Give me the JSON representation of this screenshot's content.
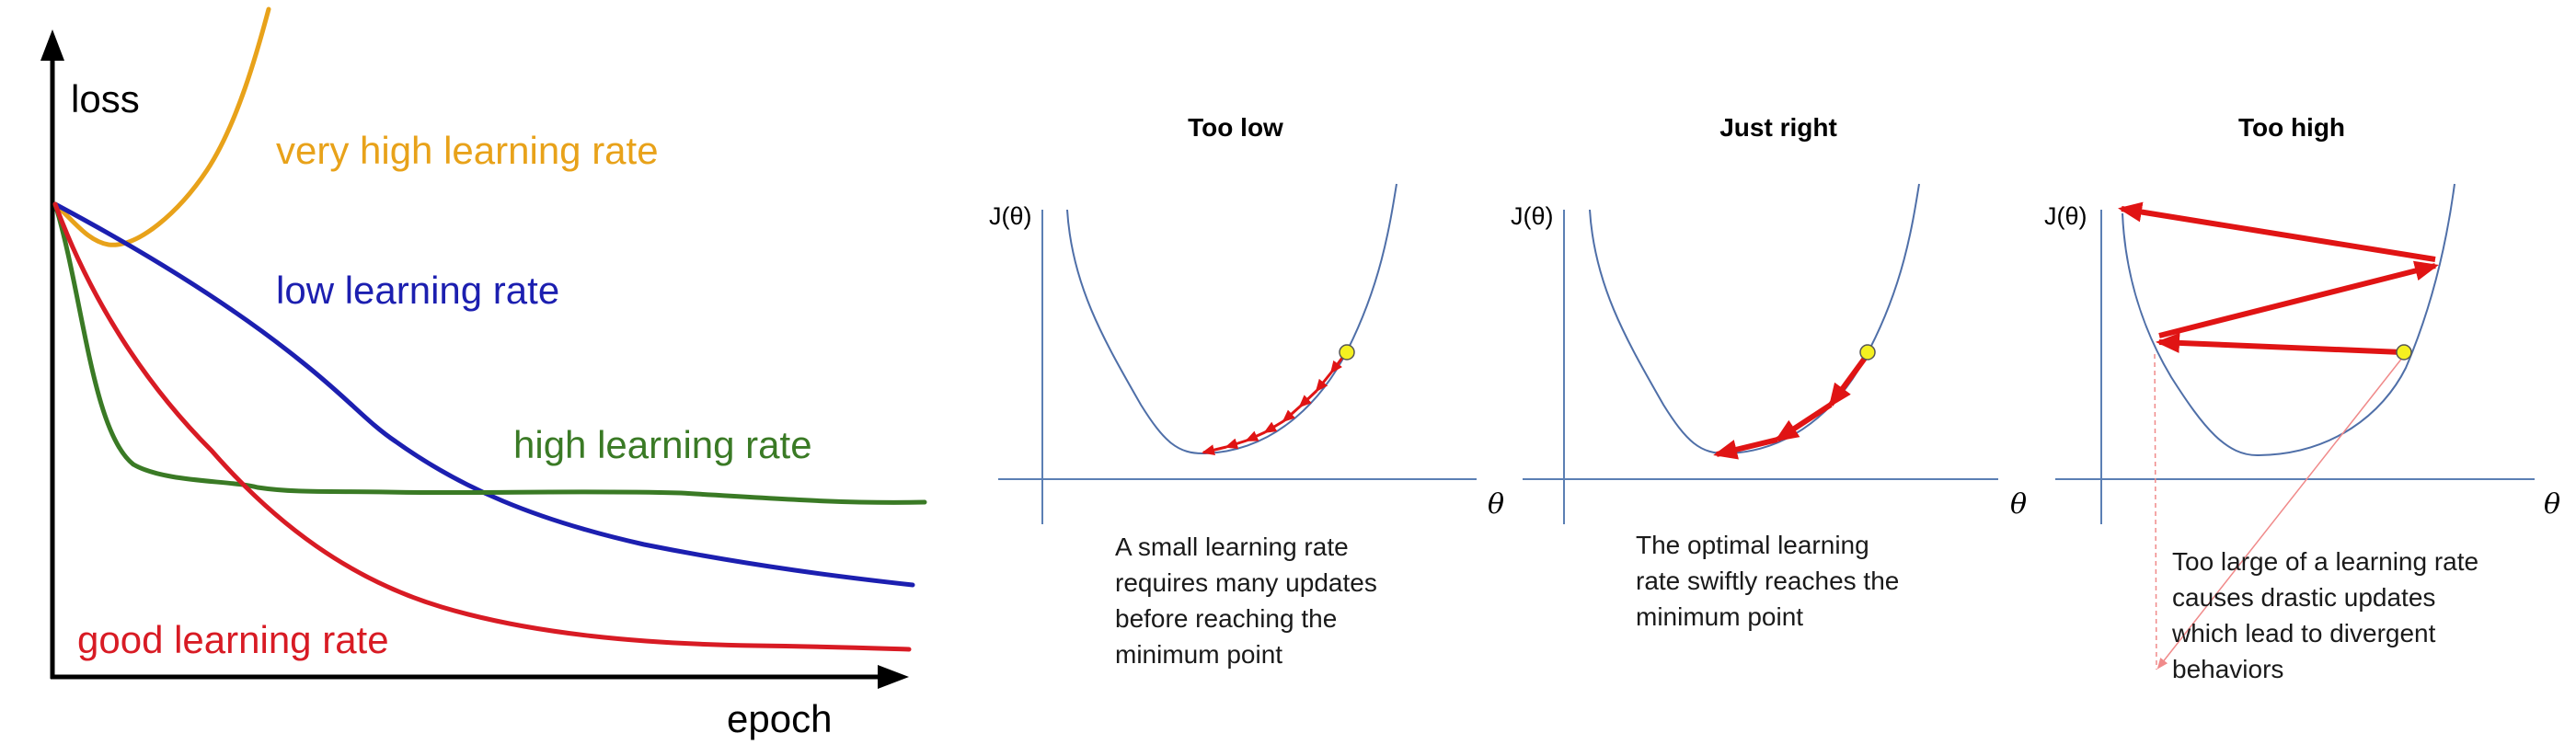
{
  "left_chart": {
    "y_axis_label": "loss",
    "x_axis_label": "epoch",
    "series": [
      {
        "name": "very high learning rate",
        "color": "#e8a21a"
      },
      {
        "name": "low learning rate",
        "color": "#1c1fb0"
      },
      {
        "name": "high learning rate",
        "color": "#3a7a25"
      },
      {
        "name": "good learning rate",
        "color": "#d81b24"
      }
    ]
  },
  "panels": [
    {
      "title": "Too low",
      "y_label": "J(θ)",
      "x_label": "θ",
      "caption": [
        "A small learning rate",
        "requires many updates",
        "before reaching the",
        "minimum point"
      ]
    },
    {
      "title": "Just right",
      "y_label": "J(θ)",
      "x_label": "θ",
      "caption": [
        "The optimal learning",
        "rate swiftly reaches the",
        "minimum point"
      ]
    },
    {
      "title": "Too high",
      "y_label": "J(θ)",
      "x_label": "θ",
      "caption": [
        "Too large of a learning rate",
        "causes drastic updates",
        "which lead to divergent",
        "behaviors"
      ]
    }
  ],
  "colors": {
    "update_arrow": "#e01414",
    "start_point": "#f5f020",
    "cost_curve": "#4f6fa8"
  }
}
